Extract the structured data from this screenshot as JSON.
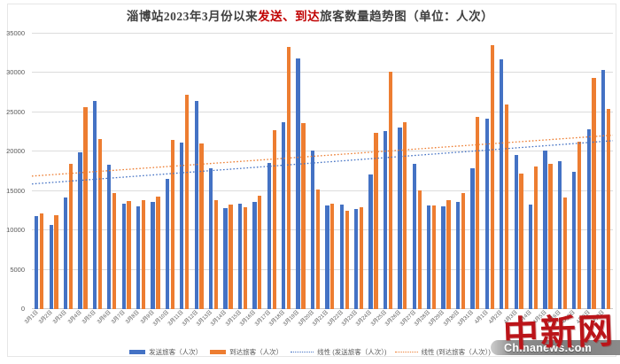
{
  "title": {
    "prefix": "淄博站2023年3月份以来",
    "highlight": "发送、到达",
    "suffix": "旅客数量趋势图（单位：人次）"
  },
  "colors": {
    "sent": "#4472C4",
    "arrived": "#ED7D31",
    "title_highlight": "#C00000",
    "gridline": "#DCDCDC",
    "axis_text": "#595959",
    "watermark_red": "#BB1419"
  },
  "chart_data": {
    "type": "bar",
    "title": "淄博站2023年3月份以来发送、到达旅客数量趋势图（单位：人次）",
    "xlabel": "",
    "ylabel": "",
    "ylim": [
      0,
      35000
    ],
    "ytick_step": 5000,
    "grid": true,
    "legend_position": "bottom",
    "categories": [
      "3月1日",
      "3月2日",
      "3月3日",
      "3月4日",
      "3月5日",
      "3月6日",
      "3月7日",
      "3月8日",
      "3月9日",
      "3月10日",
      "3月11日",
      "3月12日",
      "3月13日",
      "3月14日",
      "3月15日",
      "3月16日",
      "3月17日",
      "3月18日",
      "3月19日",
      "3月20日",
      "3月21日",
      "3月22日",
      "3月23日",
      "3月24日",
      "3月25日",
      "3月26日",
      "3月27日",
      "3月28日",
      "3月29日",
      "3月30日",
      "3月31日",
      "4月1日",
      "4月2日",
      "4月3日",
      "4月4日",
      "4月5日",
      "4月6日",
      "4月7日",
      "4月8日",
      "4月9日"
    ],
    "series": [
      {
        "name": "发送旅客（人次）",
        "color": "#4472C4",
        "values": [
          11800,
          10700,
          14200,
          19900,
          26400,
          18300,
          13400,
          13100,
          13600,
          16600,
          21200,
          26500,
          17900,
          12800,
          13400,
          13600,
          18600,
          23700,
          31900,
          20200,
          13200,
          13300,
          12700,
          17100,
          22600,
          23100,
          18500,
          13200,
          13100,
          13600,
          17900,
          24200,
          31700,
          19600,
          13300,
          20100,
          18800,
          17500,
          22800,
          30400
        ]
      },
      {
        "name": "到达旅客（人次）",
        "color": "#ED7D31",
        "values": [
          12200,
          11900,
          18500,
          25700,
          21600,
          14800,
          13700,
          13800,
          14300,
          21500,
          27200,
          21000,
          13800,
          13300,
          13000,
          14400,
          22700,
          33300,
          23600,
          15200,
          13400,
          12500,
          12900,
          22400,
          30200,
          23700,
          15100,
          13200,
          13900,
          14700,
          24400,
          33500,
          26000,
          17200,
          18100,
          18500,
          14200,
          21300,
          29400,
          25400
        ]
      }
    ],
    "trendlines": [
      {
        "name": "线性 (发送旅客（人次）)",
        "color": "#4472C4",
        "start": 15900,
        "end": 21400
      },
      {
        "name": "线性 (到达旅客（人次）)",
        "color": "#ED7D31",
        "start": 16900,
        "end": 22100
      }
    ]
  },
  "watermark": {
    "cn": "中新网",
    "en": "Chinanews.com"
  }
}
